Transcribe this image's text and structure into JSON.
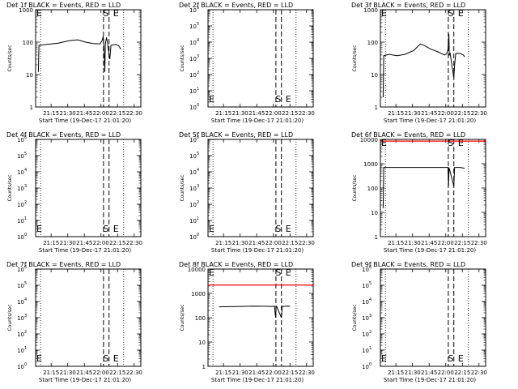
{
  "colors": {
    "background": "#ffffff",
    "ink": "#000000",
    "lld_line": "#ff0000"
  },
  "chart_data": [
    {
      "type": "line",
      "title": "Det 1f  BLACK = Events, RED = LLD",
      "ylabel": "Counts/sec",
      "xlabel": "Start Time (19-Dec-17 21:01:20)",
      "scale": "log",
      "ylim": [
        1,
        1000
      ],
      "x_range_min": [
        0,
        95
      ],
      "ytick_style": "plain",
      "yticks": [
        1,
        10,
        100,
        1000
      ],
      "yticklabels": [
        "1",
        "10",
        "100",
        "1000"
      ],
      "xticks": [
        14,
        29,
        44,
        59,
        74,
        89
      ],
      "xticklabels": [
        "21:15",
        "21:30",
        "21:45",
        "22:00",
        "22:15",
        "22:30"
      ],
      "markers": {
        "S_label": "S",
        "E_label": "E",
        "S_min": 63.5,
        "E_min": 72.5,
        "dashed_min": [
          61.3,
          66.3
        ]
      },
      "events": [
        [
          2.5,
          12
        ],
        [
          3,
          80
        ],
        [
          10,
          85
        ],
        [
          20,
          92
        ],
        [
          30,
          110
        ],
        [
          38,
          118
        ],
        [
          45,
          100
        ],
        [
          52,
          90
        ],
        [
          58,
          88
        ],
        [
          60,
          110
        ],
        [
          61,
          150
        ],
        [
          61.8,
          60
        ],
        [
          62.5,
          12
        ],
        [
          63,
          90
        ],
        [
          64,
          140
        ],
        [
          65,
          95
        ],
        [
          66.3,
          40
        ],
        [
          67,
          30
        ],
        [
          68,
          80
        ],
        [
          72,
          85
        ],
        [
          75,
          78
        ],
        [
          77,
          60
        ]
      ],
      "lld": null
    },
    {
      "type": "line",
      "title": "Det 2f  BLACK = Events, RED = LLD",
      "ylabel": "Counts/sec",
      "xlabel": "Start Time (19-Dec-17 21:01:20)",
      "scale": "log",
      "ylim": [
        1,
        1000000
      ],
      "x_range_min": [
        0,
        95
      ],
      "ytick_style": "exp",
      "yticks": [
        1,
        10,
        100,
        1000,
        10000,
        100000,
        1000000
      ],
      "yticklabels": [
        "10",
        "10",
        "10",
        "10",
        "10",
        "10",
        "10"
      ],
      "yticksup": [
        "0",
        "1",
        "2",
        "3",
        "4",
        "5",
        "6"
      ],
      "xticks": [
        14,
        29,
        44,
        59,
        74,
        89
      ],
      "xticklabels": [
        "21:15",
        "21:30",
        "21:45",
        "22:00",
        "22:15",
        "22:30"
      ],
      "markers": {
        "S_label": "S",
        "E_label": "E",
        "S_min": 63.5,
        "E_min": 72.5,
        "dashed_min": [
          61.3,
          66.3
        ]
      },
      "events": [],
      "lld": null
    },
    {
      "type": "line",
      "title": "Det 3f  BLACK = Events, RED = LLD",
      "ylabel": "Counts/sec",
      "xlabel": "Start Time (19-Dec-17 21:01:20)",
      "scale": "log",
      "ylim": [
        1,
        1000
      ],
      "x_range_min": [
        0,
        95
      ],
      "ytick_style": "plain",
      "yticks": [
        1,
        10,
        100,
        1000
      ],
      "yticklabels": [
        "1",
        "10",
        "100",
        "1000"
      ],
      "xticks": [
        14,
        29,
        44,
        59,
        74,
        89
      ],
      "xticklabels": [
        "21:15",
        "21:30",
        "21:45",
        "22:00",
        "22:15",
        "22:30"
      ],
      "markers": {
        "S_label": "S",
        "E_label": "E",
        "S_min": 63.5,
        "E_min": 72.5,
        "dashed_min": [
          61.3,
          66.3
        ]
      },
      "events": [
        [
          2.5,
          2
        ],
        [
          3,
          38
        ],
        [
          8,
          42
        ],
        [
          15,
          38
        ],
        [
          22,
          42
        ],
        [
          30,
          55
        ],
        [
          36,
          88
        ],
        [
          40,
          78
        ],
        [
          45,
          62
        ],
        [
          52,
          50
        ],
        [
          58,
          40
        ],
        [
          60,
          45
        ],
        [
          61,
          60
        ],
        [
          61.8,
          180
        ],
        [
          62.2,
          40
        ],
        [
          63,
          45
        ],
        [
          66.3,
          8
        ],
        [
          67,
          20
        ],
        [
          68,
          45
        ],
        [
          72,
          45
        ],
        [
          75,
          40
        ],
        [
          76,
          35
        ]
      ],
      "lld": null
    },
    {
      "type": "line",
      "title": "Det 4f  BLACK = Events, RED = LLD",
      "ylabel": "Counts/sec",
      "xlabel": "Start Time (19-Dec-17 21:01:20)",
      "scale": "log",
      "ylim": [
        1,
        1000000
      ],
      "x_range_min": [
        0,
        95
      ],
      "ytick_style": "exp",
      "yticks": [
        1,
        10,
        100,
        1000,
        10000,
        100000,
        1000000
      ],
      "yticklabels": [
        "10",
        "10",
        "10",
        "10",
        "10",
        "10",
        "10"
      ],
      "yticksup": [
        "0",
        "1",
        "2",
        "3",
        "4",
        "5",
        "6"
      ],
      "xticks": [
        14,
        29,
        44,
        59,
        74,
        89
      ],
      "xticklabels": [
        "21:15",
        "21:30",
        "21:45",
        "22:00",
        "22:15",
        "22:30"
      ],
      "markers": {
        "S_label": "S",
        "E_label": "E",
        "S_min": 63.5,
        "E_min": 72.5,
        "dashed_min": [
          61.3,
          66.3
        ]
      },
      "events": [],
      "lld": null
    },
    {
      "type": "line",
      "title": "Det 5f  BLACK = Events, RED = LLD",
      "ylabel": "Counts/sec",
      "xlabel": "Start Time (19-Dec-17 21:01:20)",
      "scale": "log",
      "ylim": [
        1,
        1000000
      ],
      "x_range_min": [
        0,
        95
      ],
      "ytick_style": "exp",
      "yticks": [
        1,
        10,
        100,
        1000,
        10000,
        100000,
        1000000
      ],
      "yticklabels": [
        "10",
        "10",
        "10",
        "10",
        "10",
        "10",
        "10"
      ],
      "yticksup": [
        "0",
        "1",
        "2",
        "3",
        "4",
        "5",
        "6"
      ],
      "xticks": [
        14,
        29,
        44,
        59,
        74,
        89
      ],
      "xticklabels": [
        "21:15",
        "21:30",
        "21:45",
        "22:00",
        "22:15",
        "22:30"
      ],
      "markers": {
        "S_label": "S",
        "E_label": "E",
        "S_min": 63.5,
        "E_min": 72.5,
        "dashed_min": [
          61.3,
          66.3
        ]
      },
      "events": [],
      "lld": null
    },
    {
      "type": "line",
      "title": "Det 6f  BLACK = Events, RED = LLD",
      "ylabel": "Counts/sec",
      "xlabel": "Start Time (19-Dec-17 21:01:20)",
      "scale": "log",
      "ylim": [
        1,
        10000
      ],
      "x_range_min": [
        0,
        95
      ],
      "ytick_style": "plain",
      "yticks": [
        1,
        10,
        100,
        1000,
        10000
      ],
      "yticklabels": [
        "1",
        "10",
        "100",
        "1000",
        "10000"
      ],
      "xticks": [
        14,
        29,
        44,
        59,
        74,
        89
      ],
      "xticklabels": [
        "21:15",
        "21:30",
        "21:45",
        "22:00",
        "22:15",
        "22:30"
      ],
      "markers": {
        "S_label": "S",
        "E_label": "E",
        "S_min": 63.5,
        "E_min": 72.5,
        "dashed_min": [
          61.3,
          66.3
        ]
      },
      "events": [
        [
          2.5,
          15
        ],
        [
          3,
          700
        ],
        [
          30,
          700
        ],
        [
          60,
          700
        ],
        [
          61,
          700
        ],
        [
          61.5,
          120
        ],
        [
          62,
          700
        ],
        [
          66.3,
          120
        ],
        [
          67,
          700
        ],
        [
          72,
          700
        ],
        [
          76,
          650
        ]
      ],
      "lld": 8500
    },
    {
      "type": "line",
      "title": "Det 7f  BLACK = Events, RED = LLD",
      "ylabel": "Counts/sec",
      "xlabel": "Start Time (19-Dec-17 21:01:20)",
      "scale": "log",
      "ylim": [
        1,
        1000000
      ],
      "x_range_min": [
        0,
        95
      ],
      "ytick_style": "exp",
      "yticks": [
        1,
        10,
        100,
        1000,
        10000,
        100000,
        1000000
      ],
      "yticklabels": [
        "10",
        "10",
        "10",
        "10",
        "10",
        "10",
        "10"
      ],
      "yticksup": [
        "0",
        "1",
        "2",
        "3",
        "4",
        "5",
        "6"
      ],
      "xticks": [
        14,
        29,
        44,
        59,
        74,
        89
      ],
      "xticklabels": [
        "21:15",
        "21:30",
        "21:45",
        "22:00",
        "22:15",
        "22:30"
      ],
      "markers": {
        "S_label": "S",
        "E_label": "E",
        "S_min": 63.5,
        "E_min": 72.5,
        "dashed_min": [
          61.3,
          66.3
        ]
      },
      "events": [],
      "lld": null
    },
    {
      "type": "line",
      "title": "Det 8f  BLACK = Events, RED = LLD",
      "ylabel": "Counts/sec",
      "xlabel": "Start Time (19-Dec-17 21:01:20)",
      "scale": "log",
      "ylim": [
        1,
        10000
      ],
      "x_range_min": [
        0,
        95
      ],
      "ytick_style": "plain",
      "yticks": [
        1,
        10,
        100,
        1000,
        10000
      ],
      "yticklabels": [
        "1",
        "10",
        "100",
        "1000",
        "10000"
      ],
      "xticks": [
        14,
        29,
        44,
        59,
        74,
        89
      ],
      "xticklabels": [
        "21:15",
        "21:30",
        "21:45",
        "22:00",
        "22:15",
        "22:30"
      ],
      "markers": {
        "S_label": "S",
        "E_label": "E",
        "S_min": 63.5,
        "E_min": 72.5,
        "dashed_min": [
          61.3,
          66.3
        ]
      },
      "events": [
        [
          10,
          280
        ],
        [
          20,
          285
        ],
        [
          30,
          290
        ],
        [
          40,
          300
        ],
        [
          50,
          295
        ],
        [
          58,
          290
        ],
        [
          60,
          300
        ],
        [
          61,
          100
        ],
        [
          61.5,
          280
        ],
        [
          62,
          290
        ],
        [
          66.3,
          100
        ],
        [
          67,
          290
        ],
        [
          72,
          300
        ],
        [
          74,
          295
        ]
      ],
      "lld": 2200
    },
    {
      "type": "line",
      "title": "Det 9f  BLACK = Events, RED = LLD",
      "ylabel": "Counts/sec",
      "xlabel": "Start Time (19-Dec-17 21:01:20)",
      "scale": "log",
      "ylim": [
        1,
        1000000
      ],
      "x_range_min": [
        0,
        95
      ],
      "ytick_style": "exp",
      "yticks": [
        1,
        10,
        100,
        1000,
        10000,
        100000,
        1000000
      ],
      "yticklabels": [
        "10",
        "10",
        "10",
        "10",
        "10",
        "10",
        "10"
      ],
      "yticksup": [
        "0",
        "1",
        "2",
        "3",
        "4",
        "5",
        "6"
      ],
      "xticks": [
        14,
        29,
        44,
        59,
        74,
        89
      ],
      "xticklabels": [
        "21:15",
        "21:30",
        "21:45",
        "22:00",
        "22:15",
        "22:30"
      ],
      "markers": {
        "S_label": "S",
        "E_label": "E",
        "S_min": 63.5,
        "E_min": 72.5,
        "dashed_min": [
          61.3,
          66.3
        ]
      },
      "events": [],
      "lld": null
    }
  ]
}
